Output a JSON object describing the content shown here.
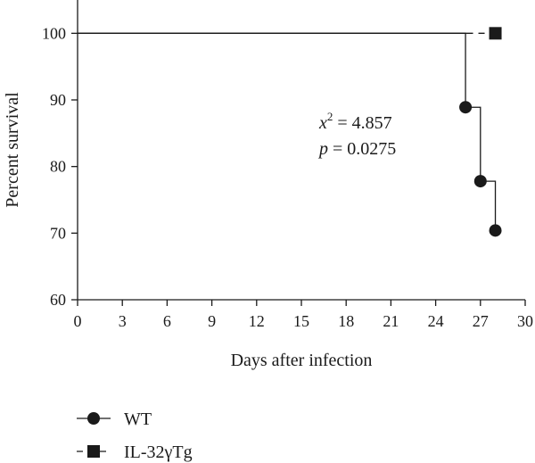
{
  "chart_data": {
    "type": "line",
    "xlabel": "Days after infection",
    "ylabel": "Percent survival",
    "xlim": [
      0,
      30
    ],
    "ylim": [
      60,
      105
    ],
    "x_ticks": [
      "0",
      "3",
      "6",
      "9",
      "12",
      "15",
      "18",
      "21",
      "24",
      "27",
      "30"
    ],
    "y_ticks": [
      "60",
      "70",
      "80",
      "90",
      "100"
    ],
    "grid": false,
    "legend_position": "bottom-left",
    "series": [
      {
        "name": "WT",
        "marker": "circle",
        "line_style": "solid",
        "color": "#1a1a1a",
        "points": [
          {
            "x": 0,
            "y": 100
          },
          {
            "x": 26,
            "y": 88.9
          },
          {
            "x": 27,
            "y": 77.8
          },
          {
            "x": 28,
            "y": 70.4
          }
        ]
      },
      {
        "name": "IL-32γTg",
        "marker": "square",
        "line_style": "dashed",
        "color": "#1a1a1a",
        "points": [
          {
            "x": 0,
            "y": 100
          },
          {
            "x": 28,
            "y": 100
          }
        ]
      }
    ],
    "annotations": {
      "chi_symbol": "x",
      "chi_exponent": "2",
      "chi_value": " = 4.857",
      "p_symbol": "p",
      "p_value": " = 0.0275"
    }
  }
}
